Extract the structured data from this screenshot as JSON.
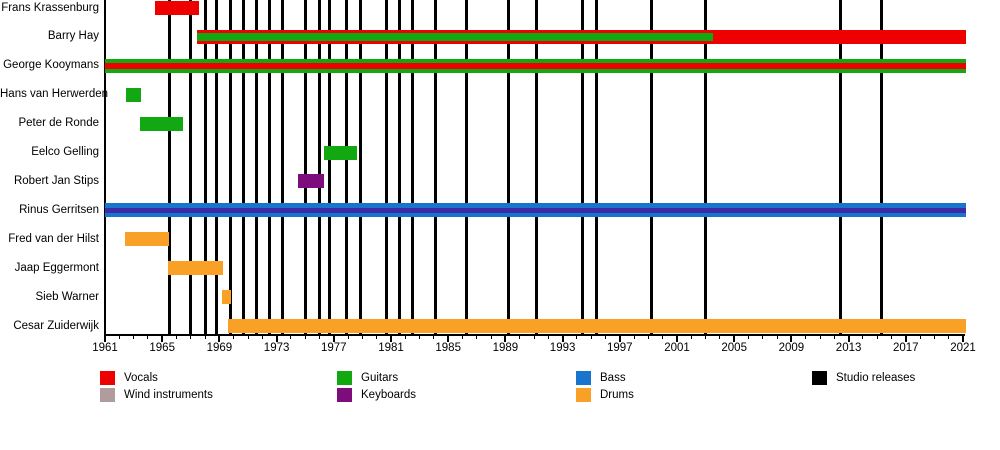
{
  "chart_data": {
    "type": "timeline",
    "title": "",
    "x_axis": {
      "min": 1961,
      "max": 2021,
      "major_tick_step": 4,
      "minor_tick_step": 1,
      "tick_labels": [
        1961,
        1965,
        1969,
        1973,
        1977,
        1981,
        1985,
        1989,
        1993,
        1997,
        2001,
        2005,
        2009,
        2013,
        2017,
        2021
      ]
    },
    "colors": {
      "vocals": "#EE0000",
      "guitars": "#12A812",
      "bass": "#1874CD",
      "drums": "#F9A126",
      "keyboards": "#7D0C7D",
      "wind": "#B09C9C",
      "studio": "#000000",
      "keyboards_on_bass": "#3D2BA3"
    },
    "members": [
      {
        "name": "Frans Krassenburg",
        "bars": [
          {
            "instrument": "vocals",
            "start": 1964.5,
            "end": 1967.6,
            "h": 14
          }
        ]
      },
      {
        "name": "Barry Hay",
        "bars": [
          {
            "instrument": "vocals",
            "start": 1967.4,
            "end": 2021.2,
            "h": 14
          },
          {
            "instrument": "guitars",
            "start": 1967.4,
            "end": 2003.5,
            "h": 8
          }
        ]
      },
      {
        "name": "George Kooymans",
        "bars": [
          {
            "instrument": "guitars",
            "start": 1961.0,
            "end": 2021.2,
            "h": 14
          },
          {
            "instrument": "vocals",
            "start": 1961.0,
            "end": 2021.2,
            "h": 6
          }
        ]
      },
      {
        "name": "Hans van Herwerden",
        "bars": [
          {
            "instrument": "guitars",
            "start": 1962.5,
            "end": 1963.5,
            "h": 14
          }
        ]
      },
      {
        "name": "Peter de Ronde",
        "bars": [
          {
            "instrument": "guitars",
            "start": 1963.45,
            "end": 1966.45,
            "h": 14
          }
        ]
      },
      {
        "name": "Eelco Gelling",
        "bars": [
          {
            "instrument": "guitars",
            "start": 1976.3,
            "end": 1978.6,
            "h": 14
          }
        ]
      },
      {
        "name": "Robert Jan Stips",
        "bars": [
          {
            "instrument": "keyboards",
            "start": 1974.5,
            "end": 1976.3,
            "h": 14
          }
        ]
      },
      {
        "name": "Rinus Gerritsen",
        "bars": [
          {
            "instrument": "bass",
            "start": 1961.0,
            "end": 2021.2,
            "h": 14
          },
          {
            "instrument": "keyboards_on_bass",
            "start": 1961.0,
            "end": 2021.2,
            "h": 5
          }
        ]
      },
      {
        "name": "Fred van der Hilst",
        "bars": [
          {
            "instrument": "drums",
            "start": 1962.4,
            "end": 1965.5,
            "h": 14
          }
        ]
      },
      {
        "name": "Jaap Eggermont",
        "bars": [
          {
            "instrument": "drums",
            "start": 1965.4,
            "end": 1969.25,
            "h": 14
          }
        ]
      },
      {
        "name": "Sieb Warner",
        "bars": [
          {
            "instrument": "drums",
            "start": 1969.2,
            "end": 1969.8,
            "h": 14
          }
        ]
      },
      {
        "name": "Cesar Zuiderwijk",
        "bars": [
          {
            "instrument": "drums",
            "start": 1969.6,
            "end": 2021.2,
            "h": 14
          }
        ]
      }
    ],
    "studio_release_years": [
      1965.5,
      1967.0,
      1968.0,
      1968.8,
      1969.8,
      1970.7,
      1971.6,
      1972.5,
      1973.4,
      1975.0,
      1976.0,
      1976.7,
      1977.9,
      1978.9,
      1980.7,
      1981.6,
      1982.5,
      1984.1,
      1986.3,
      1989.25,
      1991.2,
      1994.4,
      1995.4,
      1999.25,
      2003.0,
      2012.4,
      2015.3
    ],
    "legend": [
      {
        "label": "Vocals",
        "color": "vocals",
        "col": 0,
        "row": 0
      },
      {
        "label": "Wind instruments",
        "color": "wind",
        "col": 0,
        "row": 1
      },
      {
        "label": "Guitars",
        "color": "guitars",
        "col": 1,
        "row": 0
      },
      {
        "label": "Keyboards",
        "color": "keyboards",
        "col": 1,
        "row": 1
      },
      {
        "label": "Bass",
        "color": "bass",
        "col": 2,
        "row": 0
      },
      {
        "label": "Drums",
        "color": "drums",
        "col": 2,
        "row": 1
      },
      {
        "label": "Studio releases",
        "color": "studio",
        "col": 3,
        "row": 0
      }
    ]
  }
}
